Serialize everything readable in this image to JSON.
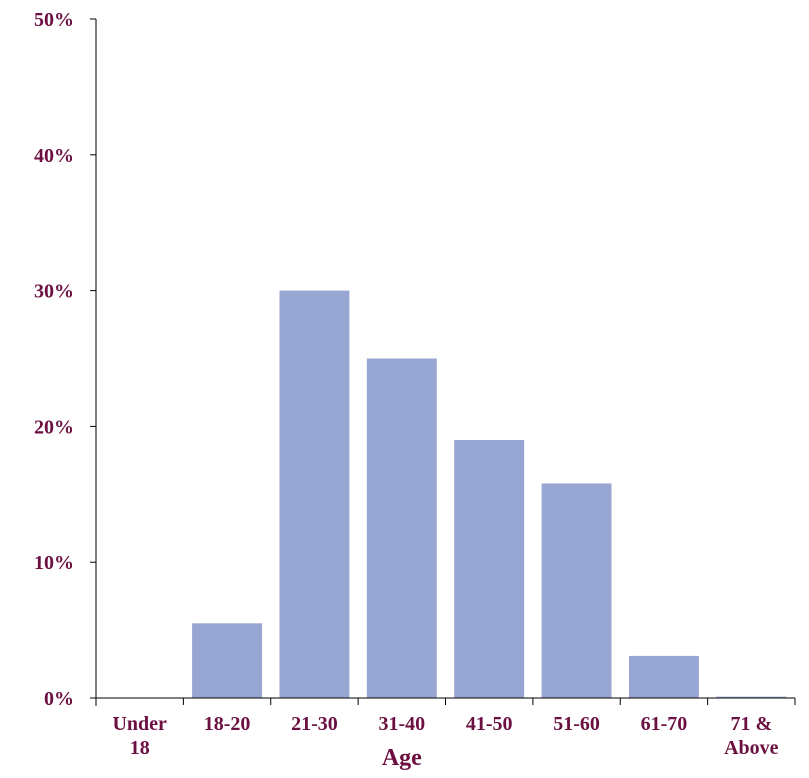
{
  "chart_data": {
    "type": "bar",
    "title": "",
    "xlabel": "Age",
    "ylabel": "",
    "categories": [
      [
        "Under",
        "18"
      ],
      [
        "18-20"
      ],
      [
        "21-30"
      ],
      [
        "31-40"
      ],
      [
        "41-50"
      ],
      [
        "51-60"
      ],
      [
        "61-70"
      ],
      [
        "71 &",
        "Above"
      ]
    ],
    "values": [
      0,
      5.5,
      30,
      25,
      19,
      15.8,
      3.1,
      0.1
    ],
    "unit": "%",
    "ylim": [
      0,
      50
    ],
    "yticks": [
      "0%",
      "10%",
      "20%",
      "30%",
      "40%",
      "50%"
    ],
    "grid": false,
    "colors": {
      "bar": "#97a6d2",
      "text": "#6b1040",
      "axis": "#000000"
    }
  }
}
